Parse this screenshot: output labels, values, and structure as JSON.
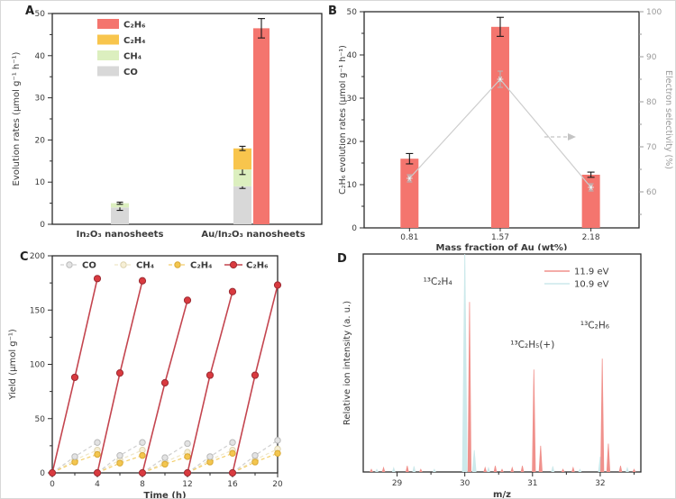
{
  "figure": {
    "background": "#ffffff"
  },
  "panels": {
    "a": "A",
    "b": "B",
    "c": "C",
    "d": "D"
  },
  "colors": {
    "c2h6_bar": "#f4756e",
    "c2h4_bar": "#f8c54d",
    "ch4_bar": "#dcefbf",
    "co_bar": "#d8d8d8",
    "error": "#1a1a1a",
    "axis": "#2b2b2b",
    "tick_text": "#3a3a3a",
    "gray_line": "#cdcdcd",
    "gray_marker_fill": "#eeeeee",
    "gray_marker_stroke": "#b9b9b9",
    "right_axis_gray": "#9a9a9a",
    "c_co_line": "#cfcfcf",
    "c_co_fill": "#e3e3e3",
    "c_ch4_line": "#efe6c6",
    "c_ch4_fill": "#f6efd6",
    "c_ch4_stroke": "#ddd3ae",
    "c_c2h4_line": "#f3ce6a",
    "c_c2h4_fill": "#f3c64f",
    "c_c2h4_stroke": "#d9a832",
    "c_c2h6_line": "#c4454f",
    "c_c2h6_fill": "#d93a3f",
    "c_c2h6_stroke": "#9c2b33",
    "ms_red": "#f0918c",
    "ms_blue": "#cce9eb"
  },
  "chart_data": [
    {
      "id": "A",
      "type": "bar",
      "ylabel": "Evolution rates (µmol g⁻¹ h⁻¹)",
      "ylim": [
        0,
        50
      ],
      "yticks": [
        0,
        10,
        20,
        30,
        40,
        50
      ],
      "categories": [
        "In₂O₃ nanosheets",
        "Au/In₂O₃ nanosheets"
      ],
      "legend": [
        {
          "label": "C₂H₆",
          "key": "c2h6_bar"
        },
        {
          "label": "C₂H₄",
          "key": "c2h4_bar"
        },
        {
          "label": "CH₄",
          "key": "ch4_bar"
        },
        {
          "label": "CO",
          "key": "co_bar"
        }
      ],
      "stacked_series": [
        {
          "name": "CO",
          "key": "co_bar",
          "values": [
            4.0,
            9.0
          ],
          "errors": [
            0.7,
            0.5
          ]
        },
        {
          "name": "CH₄",
          "key": "ch4_bar",
          "values": [
            1.0,
            4.0
          ],
          "errors": [
            0.25,
            1.2
          ]
        },
        {
          "name": "C₂H₄",
          "key": "c2h4_bar",
          "values": [
            0,
            5.0
          ],
          "errors": [
            0,
            0.5
          ]
        }
      ],
      "separate_series": {
        "name": "C₂H₆",
        "key": "c2h6_bar",
        "values": [
          0,
          46.5
        ],
        "errors": [
          0,
          2.3
        ]
      }
    },
    {
      "id": "B",
      "type": "bar+line",
      "xlabel": "Mass fraction of Au (wt%)",
      "ylabel_left": "C₂H₆ evolution rates (µmol g⁻¹ h⁻¹)",
      "ylabel_right": "Electron selectivity (%)",
      "ylim_left": [
        0,
        50
      ],
      "yticks_left": [
        0,
        10,
        20,
        30,
        40,
        50
      ],
      "ylim_right": [
        52,
        100
      ],
      "yticks_right": [
        60,
        70,
        80,
        90,
        100
      ],
      "categories": [
        "0.81",
        "1.57",
        "2.18"
      ],
      "bars": {
        "name": "C₂H₆ evolution rate",
        "values": [
          16.0,
          46.5,
          12.3
        ],
        "errors": [
          1.2,
          2.2,
          0.6
        ]
      },
      "line": {
        "name": "Electron selectivity",
        "values": [
          63,
          85,
          61
        ],
        "errors": [
          0.8,
          1.8,
          0.8
        ]
      }
    },
    {
      "id": "C",
      "type": "line",
      "xlabel": "Time (h)",
      "ylabel": "Yield (µmol g⁻¹)",
      "xlim": [
        0,
        20
      ],
      "xticks": [
        0,
        4,
        8,
        12,
        16,
        20
      ],
      "ylim": [
        0,
        200
      ],
      "yticks": [
        0,
        50,
        100,
        150,
        200
      ],
      "cycle_starts": [
        0,
        4,
        8,
        12,
        16
      ],
      "point_offsets": [
        0,
        2,
        4
      ],
      "series": [
        {
          "name": "CO",
          "style": "co",
          "cycles": [
            [
              0,
              15,
              28
            ],
            [
              0,
              16,
              28
            ],
            [
              0,
              14,
              27
            ],
            [
              0,
              15,
              28
            ],
            [
              0,
              16,
              30
            ]
          ]
        },
        {
          "name": "CH₄",
          "style": "ch4",
          "cycles": [
            [
              0,
              12,
              21
            ],
            [
              0,
              12,
              21
            ],
            [
              0,
              10,
              19
            ],
            [
              0,
              12,
              21
            ],
            [
              0,
              12,
              22
            ]
          ]
        },
        {
          "name": "C₂H₄",
          "style": "c2h4",
          "cycles": [
            [
              0,
              10,
              17
            ],
            [
              0,
              9,
              16
            ],
            [
              0,
              8,
              15
            ],
            [
              0,
              10,
              18
            ],
            [
              0,
              10,
              18
            ]
          ]
        },
        {
          "name": "C₂H₆",
          "style": "c2h6",
          "cycles": [
            [
              0,
              88,
              179
            ],
            [
              0,
              92,
              177
            ],
            [
              0,
              83,
              159
            ],
            [
              0,
              90,
              167
            ],
            [
              0,
              90,
              173
            ]
          ]
        }
      ]
    },
    {
      "id": "D",
      "type": "mass-spectrum",
      "xlabel": "m/z",
      "ylabel": "Relative ion intensity (a. u.)",
      "xlim": [
        28.5,
        32.6
      ],
      "xticks": [
        29,
        30,
        31,
        32
      ],
      "legend": [
        {
          "label": "11.9 eV",
          "key": "ms_red"
        },
        {
          "label": "10.9 eV",
          "key": "ms_blue"
        }
      ],
      "peaks_red": [
        {
          "mz": 30.07,
          "h": 0.78
        },
        {
          "mz": 31.02,
          "h": 0.47
        },
        {
          "mz": 31.12,
          "h": 0.12
        },
        {
          "mz": 32.03,
          "h": 0.52
        },
        {
          "mz": 32.12,
          "h": 0.13
        }
      ],
      "peaks_blue": [
        {
          "mz": 30.0,
          "h": 1.03
        },
        {
          "mz": 30.14,
          "h": 0.1
        },
        {
          "mz": 32.0,
          "h": 0.07
        }
      ],
      "noise_red": [
        28.62,
        28.8,
        29.15,
        29.35,
        30.3,
        30.45,
        30.55,
        30.7,
        30.85,
        31.45,
        31.6,
        32.3,
        32.5
      ],
      "noise_blue": [
        28.7,
        28.95,
        29.25,
        29.55,
        30.35,
        31.3,
        31.7,
        32.4
      ],
      "annotations": [
        {
          "text": "¹³C₂H₄",
          "x": 29.6,
          "y": 0.86
        },
        {
          "text": "¹³C₂H₅(+)",
          "x": 31.0,
          "y": 0.57
        },
        {
          "text": "¹³C₂H₆",
          "x": 31.92,
          "y": 0.66
        }
      ]
    }
  ]
}
